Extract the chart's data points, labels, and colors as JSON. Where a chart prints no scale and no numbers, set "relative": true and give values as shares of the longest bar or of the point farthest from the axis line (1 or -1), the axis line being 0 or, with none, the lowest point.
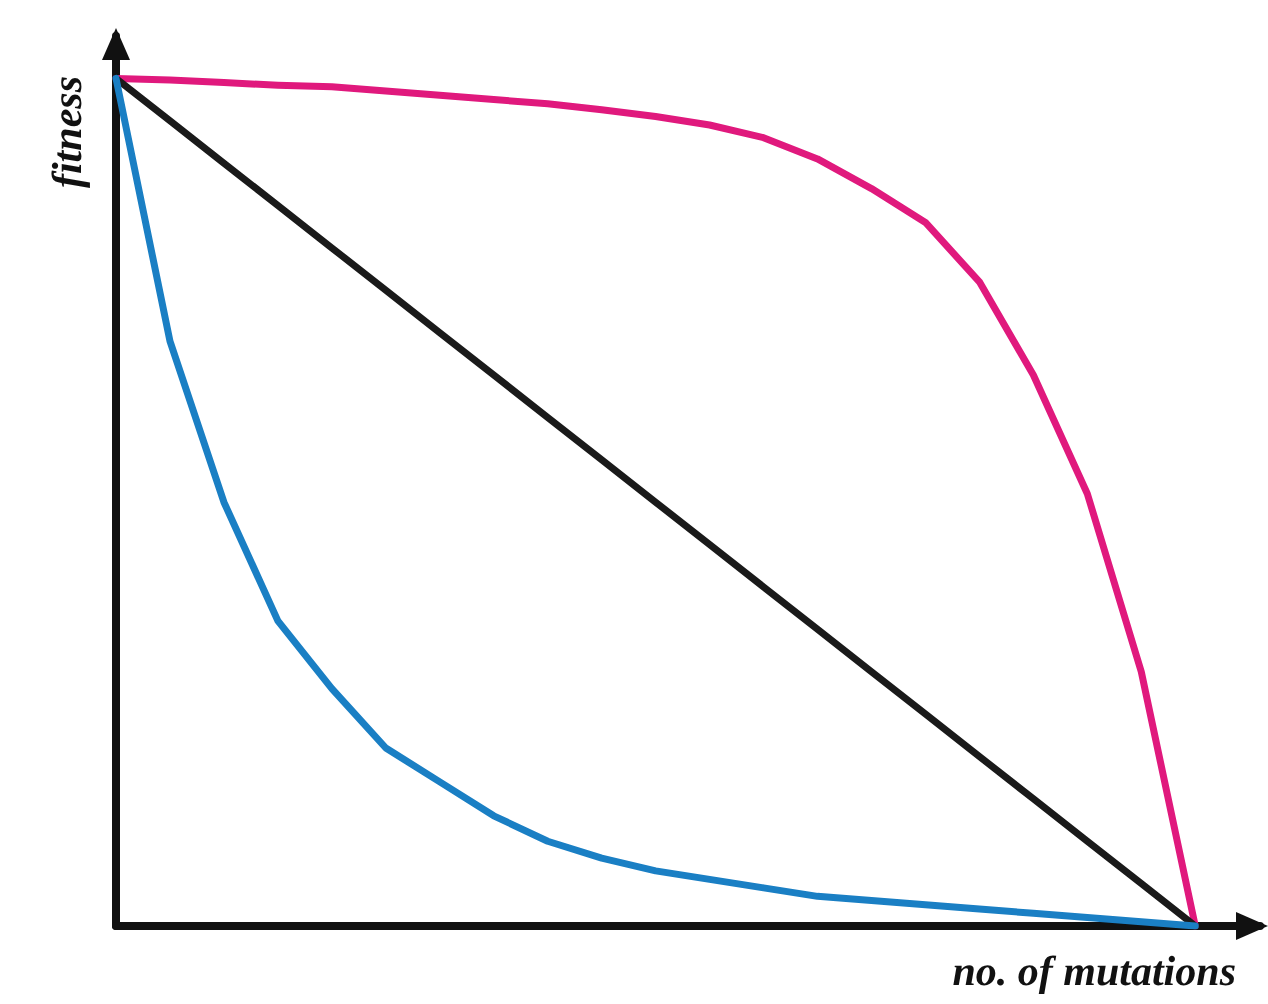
{
  "chart_data": {
    "type": "line",
    "relative": true,
    "xlabel": "no. of mutations",
    "ylabel": "fitness",
    "categories": [
      null,
      null,
      null,
      null,
      null,
      null,
      null,
      null,
      null,
      null,
      null,
      null,
      null,
      null,
      null,
      null,
      null,
      null,
      null,
      null,
      null
    ],
    "series": [
      {
        "color": "#e0197d",
        "values": [
          1,
          0.998,
          0.995,
          0.992,
          0.99,
          0.985,
          0.98,
          0.975,
          0.97,
          0.963,
          0.955,
          0.945,
          0.93,
          0.905,
          0.87,
          0.83,
          0.76,
          0.65,
          0.51,
          0.3,
          0
        ]
      },
      {
        "color": "#1a1a1a",
        "values": [
          1,
          0.95,
          0.9,
          0.85,
          0.8,
          0.75,
          0.7,
          0.65,
          0.6,
          0.55,
          0.5,
          0.45,
          0.4,
          0.35,
          0.3,
          0.25,
          0.2,
          0.15,
          0.1,
          0.05,
          0
        ]
      },
      {
        "color": "#1a7fc4",
        "values": [
          1,
          0.69,
          0.5,
          0.36,
          0.28,
          0.21,
          0.17,
          0.13,
          0.1,
          0.08,
          0.065,
          0.055,
          0.045,
          0.035,
          0.03,
          0.025,
          0.02,
          0.015,
          0.01,
          0.005,
          0
        ]
      }
    ],
    "grid": false,
    "marker": "none",
    "line_style": "solid"
  }
}
